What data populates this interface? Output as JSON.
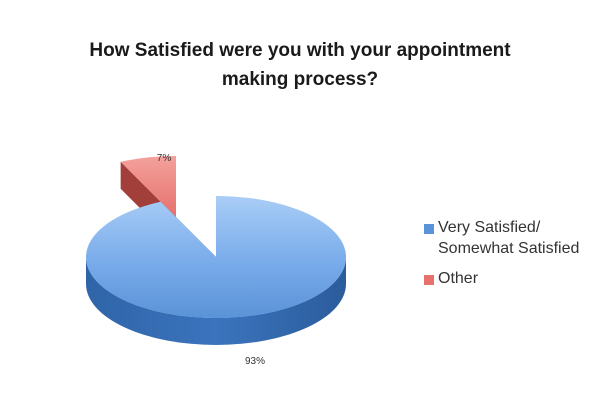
{
  "chart_data": {
    "type": "pie",
    "title_lines": [
      "How Satisfied were you with your appointment",
      "making process?"
    ],
    "slices": [
      {
        "label_lines": [
          "Very Satisfied/",
          "Somewhat Satisfied"
        ],
        "value": 93,
        "value_label": "93%",
        "color": "#5b93d8"
      },
      {
        "label_lines": [
          "Other"
        ],
        "value": 7,
        "value_label": "7%",
        "color": "#e5716d"
      }
    ],
    "legend_position": "right",
    "exploded_slice": "Other",
    "style": "3d"
  }
}
